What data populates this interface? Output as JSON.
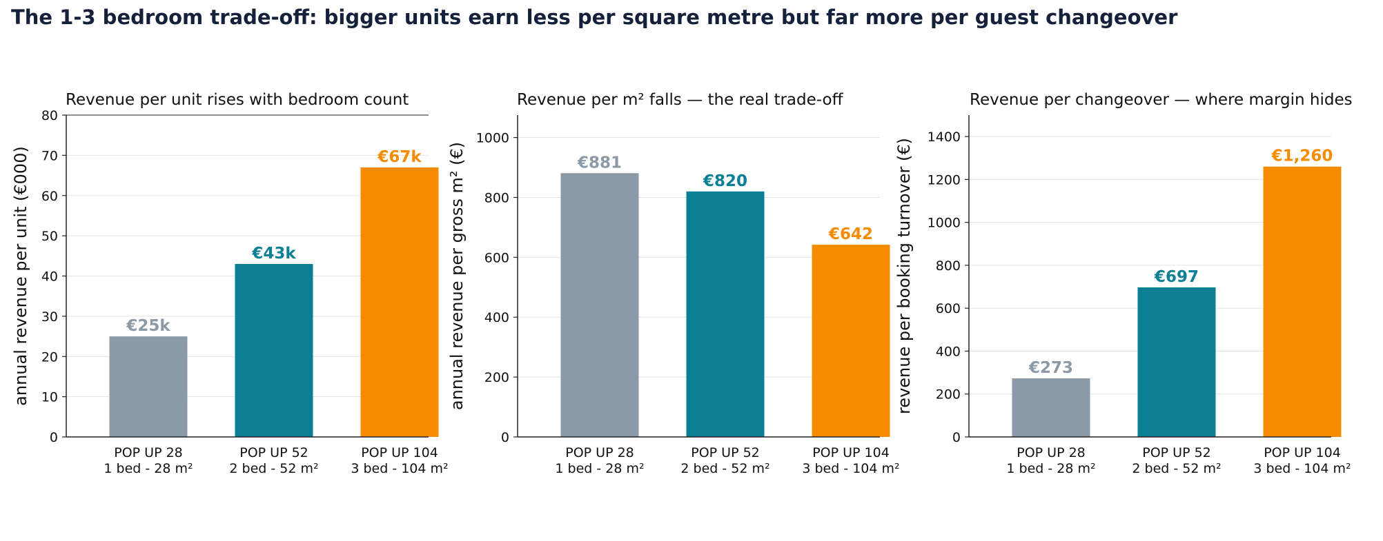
{
  "title": "The 1-3 bedroom trade-off: bigger units earn less per square metre but far more per guest changeover",
  "colors": {
    "text": "#15203a",
    "axis": "#222222",
    "grid": "#e3e3e3"
  },
  "chart_data": [
    {
      "type": "bar",
      "title": "Revenue per unit rises with bedroom count",
      "ylabel": "annual revenue per unit  (€000)",
      "xlabel": "",
      "categories": [
        [
          "POP UP 28",
          "1 bed - 28 m²"
        ],
        [
          "POP UP 52",
          "2 bed - 52 m²"
        ],
        [
          "POP UP 104",
          "3 bed - 104 m²"
        ]
      ],
      "values": [
        25,
        43,
        67
      ],
      "labels": [
        "€25k",
        "€43k",
        "€67k"
      ],
      "colors": [
        "#8c99a6",
        "#0b7f93",
        "#f58b00"
      ],
      "ylim": [
        0,
        80
      ],
      "yticks": [
        0,
        10,
        20,
        30,
        40,
        50,
        60,
        70,
        80
      ],
      "grid": true,
      "top_spine": true
    },
    {
      "type": "bar",
      "title": "Revenue per m² falls — the real trade-off",
      "ylabel": "annual revenue per gross m²  (€)",
      "xlabel": "",
      "categories": [
        [
          "POP UP 28",
          "1 bed - 28 m²"
        ],
        [
          "POP UP 52",
          "2 bed - 52 m²"
        ],
        [
          "POP UP 104",
          "3 bed - 104 m²"
        ]
      ],
      "values": [
        881,
        820,
        642
      ],
      "labels": [
        "€881",
        "€820",
        "€642"
      ],
      "colors": [
        "#8c99a6",
        "#0b7f93",
        "#f58b00"
      ],
      "ylim": [
        0,
        1075
      ],
      "yticks": [
        0,
        200,
        400,
        600,
        800,
        1000
      ],
      "grid": true,
      "top_spine": false
    },
    {
      "type": "bar",
      "title": "Revenue per changeover — where margin hides",
      "ylabel": "revenue per booking turnover  (€)",
      "xlabel": "",
      "categories": [
        [
          "POP UP 28",
          "1 bed - 28 m²"
        ],
        [
          "POP UP 52",
          "2 bed - 52 m²"
        ],
        [
          "POP UP 104",
          "3 bed - 104 m²"
        ]
      ],
      "values": [
        273,
        697,
        1260
      ],
      "labels": [
        "€273",
        "€697",
        "€1,260"
      ],
      "colors": [
        "#8c99a6",
        "#0b7f93",
        "#f58b00"
      ],
      "ylim": [
        0,
        1500
      ],
      "yticks": [
        0,
        200,
        400,
        600,
        800,
        1000,
        1200,
        1400
      ],
      "grid": true,
      "top_spine": false
    }
  ]
}
